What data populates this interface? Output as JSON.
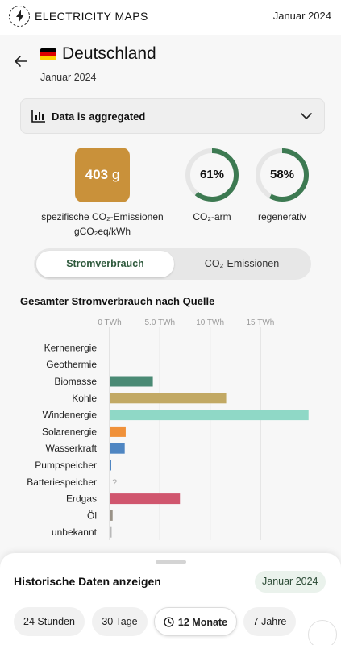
{
  "header": {
    "brand": "ELECTRICITY MAPS",
    "date": "Januar 2024"
  },
  "zone": {
    "country": "Deutschland",
    "date": "Januar 2024"
  },
  "aggregation": {
    "label": "Data is aggregated"
  },
  "metrics": {
    "co2_value": "403",
    "co2_unit": "g",
    "co2_label": "spezifische CO₂-Emissionen",
    "co2_unit_label": "gCO₂eq/kWh",
    "low_carbon_pct": 61,
    "low_carbon_text": "61%",
    "low_carbon_label": "CO₂-arm",
    "renewable_pct": 58,
    "renewable_text": "58%",
    "renewable_label": "regenerativ"
  },
  "tabs": {
    "active": "Stromverbrauch",
    "inactive": "CO₂-Emissionen"
  },
  "chart_title": "Gesamter Stromverbrauch nach Quelle",
  "chart_data": {
    "type": "bar",
    "orientation": "horizontal",
    "title": "Gesamter Stromverbrauch nach Quelle",
    "x_unit": "TWh",
    "xlim": [
      0,
      19.5
    ],
    "x_ticks": [
      0,
      5,
      10,
      15
    ],
    "x_tick_labels": [
      "0 TWh",
      "5.0 TWh",
      "10 TWh",
      "15 TWh"
    ],
    "grid": true,
    "categories": [
      "Kernenergie",
      "Geothermie",
      "Biomasse",
      "Kohle",
      "Windenergie",
      "Solarenergie",
      "Wasserkraft",
      "Pumpspeicher",
      "Batteriespeicher",
      "Erdgas",
      "Öl",
      "unbekannt"
    ],
    "values": [
      0,
      0,
      4.3,
      11.6,
      19.8,
      1.6,
      1.5,
      0.15,
      null,
      7.0,
      0.3,
      0.2
    ],
    "colors": [
      "#a7a7a7",
      "#a7a7a7",
      "#4a8a74",
      "#c2a964",
      "#8fd8c6",
      "#f0913a",
      "#4f86c2",
      "#4f86c2",
      "#a7a7a7",
      "#d0566e",
      "#9a9388",
      "#b9b9b9"
    ],
    "missing_marker": "?"
  },
  "history": {
    "title": "Historische Daten anzeigen",
    "badge": "Januar 2024",
    "options": [
      "24 Stunden",
      "30 Tage",
      "12 Monate",
      "7 Jahre"
    ],
    "selected": "12 Monate"
  },
  "colors": {
    "accent_green": "#3d7a52",
    "co2_box": "#c9913a"
  }
}
